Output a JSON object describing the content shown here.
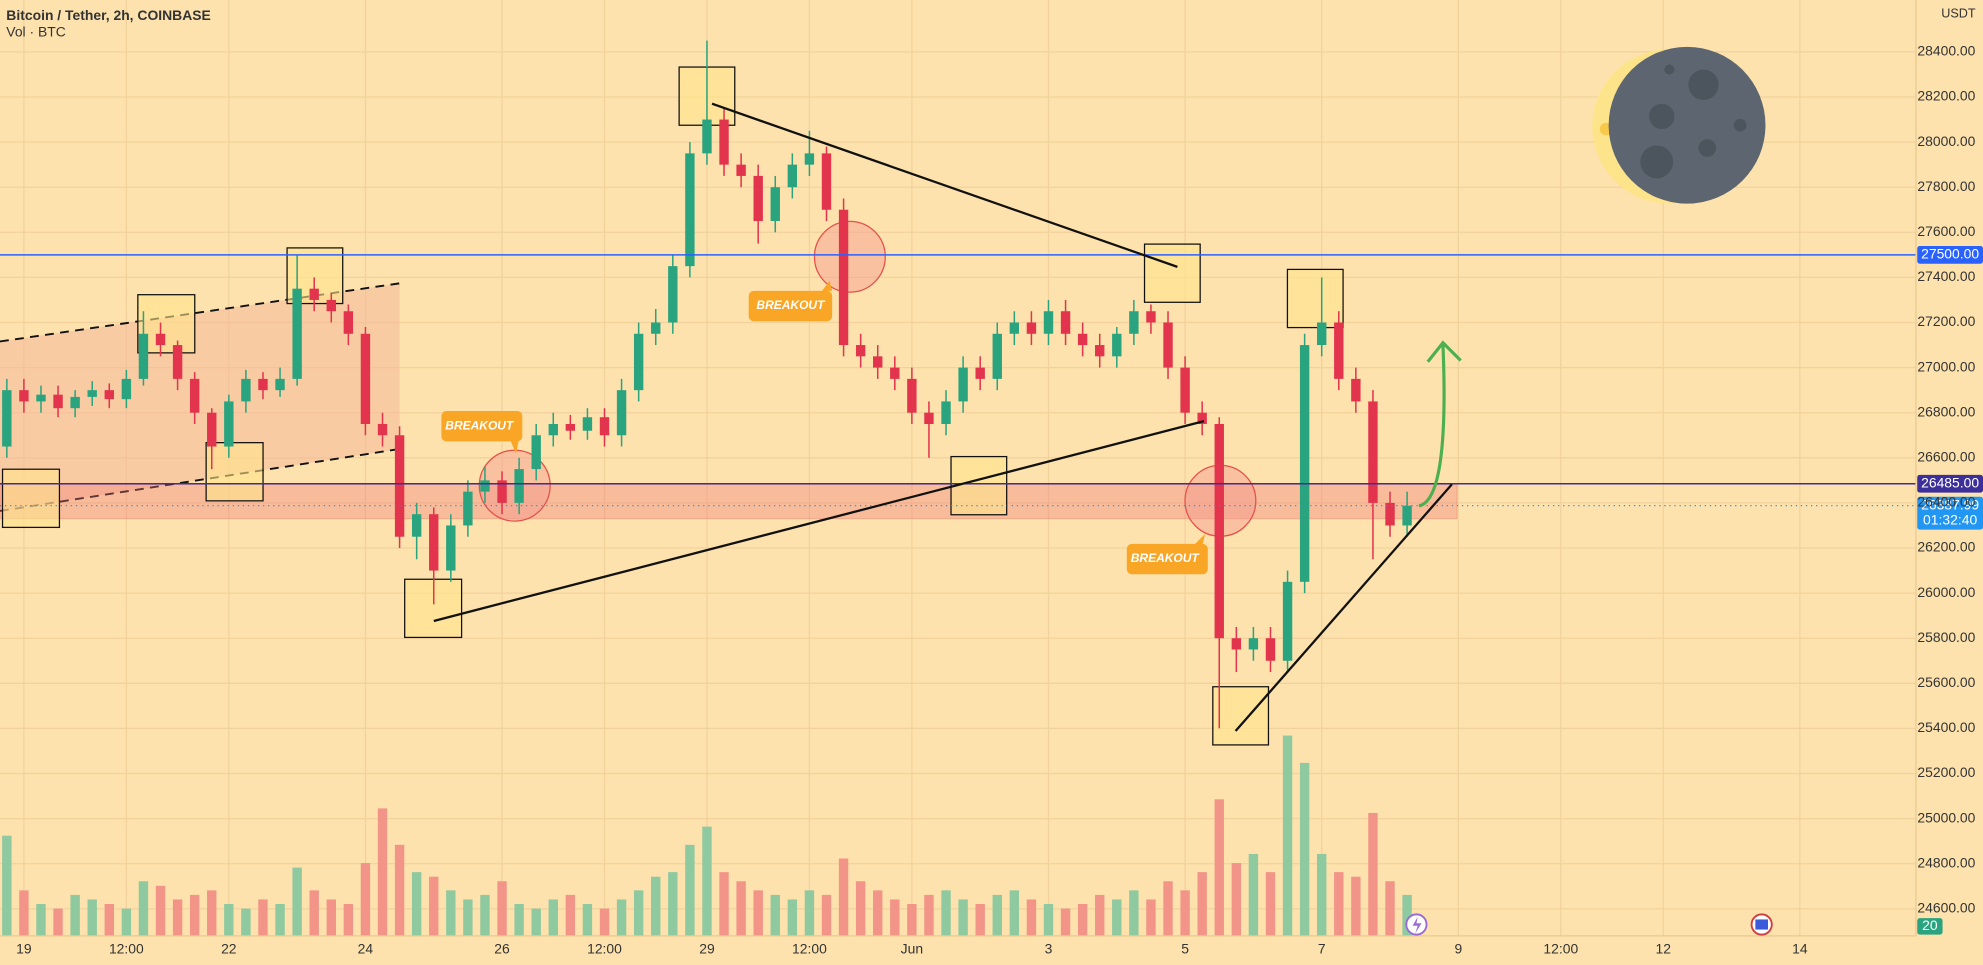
{
  "chart_data": {
    "type": "candlestick",
    "title": "Bitcoin / Tether, 2h, COINBASE",
    "subtitle": "Vol · BTC",
    "y_axis_label": "USDT",
    "open": [
      26650,
      26900,
      26850,
      26880,
      26820,
      26870,
      26900,
      26860,
      26950,
      27150,
      27100,
      26950,
      26800,
      26650,
      26850,
      26950,
      26900,
      26950,
      27350,
      27300,
      27250,
      27150,
      26750,
      26700,
      26250,
      26350,
      26100,
      26300,
      26450,
      26500,
      26400,
      26550,
      26700,
      26750,
      26720,
      26780,
      26700,
      26900,
      27150,
      27200,
      27450,
      27950,
      28100,
      27900,
      27850,
      27650,
      27800,
      27900,
      27950,
      27700,
      27100,
      27050,
      27000,
      26950,
      26800,
      26750,
      26850,
      27000,
      26950,
      27150,
      27200,
      27150,
      27250,
      27150,
      27100,
      27050,
      27150,
      27250,
      27200,
      27000,
      26800,
      26750,
      25800,
      25750,
      25800,
      25700,
      26050,
      27100,
      27200,
      26950,
      26850,
      26400,
      26300
    ],
    "high": [
      26950,
      26950,
      26920,
      26920,
      26900,
      26940,
      26930,
      26990,
      27250,
      27200,
      27120,
      26980,
      26820,
      26880,
      26990,
      26980,
      27000,
      27500,
      27400,
      27330,
      27280,
      27180,
      26800,
      26740,
      26400,
      26380,
      26350,
      26500,
      26560,
      26540,
      26600,
      26750,
      26800,
      26790,
      26820,
      26820,
      26950,
      27200,
      27260,
      27500,
      28000,
      28450,
      28150,
      27950,
      27900,
      27850,
      27950,
      28050,
      27980,
      27750,
      27150,
      27100,
      27050,
      27000,
      26850,
      26900,
      27050,
      27050,
      27200,
      27250,
      27250,
      27300,
      27300,
      27200,
      27150,
      27180,
      27300,
      27280,
      27250,
      27050,
      26850,
      26780,
      25850,
      25850,
      25850,
      26100,
      27150,
      27400,
      27250,
      27000,
      26900,
      26450,
      26450
    ],
    "low": [
      26600,
      26800,
      26800,
      26780,
      26780,
      26830,
      26820,
      26820,
      26920,
      27050,
      26900,
      26750,
      26550,
      26600,
      26800,
      26860,
      26870,
      26920,
      27250,
      27200,
      27100,
      26700,
      26650,
      26200,
      26150,
      25950,
      26050,
      26250,
      26400,
      26350,
      26350,
      26500,
      26650,
      26680,
      26680,
      26650,
      26650,
      26850,
      27100,
      27150,
      27400,
      27900,
      27850,
      27800,
      27550,
      27600,
      27750,
      27850,
      27650,
      27050,
      27000,
      26950,
      26900,
      26750,
      26600,
      26700,
      26800,
      26900,
      26900,
      27100,
      27100,
      27100,
      27100,
      27050,
      27000,
      27000,
      27100,
      27150,
      26950,
      26750,
      26700,
      25400,
      25650,
      25700,
      25650,
      25650,
      26000,
      27050,
      26900,
      26800,
      26150,
      26250,
      26250
    ],
    "close": [
      26900,
      26850,
      26880,
      26820,
      26870,
      26900,
      26860,
      26950,
      27150,
      27100,
      26950,
      26800,
      26650,
      26850,
      26950,
      26900,
      26950,
      27350,
      27300,
      27250,
      27150,
      26750,
      26700,
      26250,
      26350,
      26100,
      26300,
      26450,
      26500,
      26400,
      26550,
      26700,
      26750,
      26720,
      26780,
      26700,
      26900,
      27150,
      27200,
      27450,
      27950,
      28100,
      27900,
      27850,
      27650,
      27800,
      27900,
      27950,
      27700,
      27100,
      27050,
      27000,
      26950,
      26800,
      26750,
      26850,
      27000,
      26950,
      27150,
      27200,
      27150,
      27250,
      27150,
      27100,
      27050,
      27150,
      27250,
      27200,
      27000,
      26800,
      26750,
      25800,
      25750,
      25800,
      25700,
      26050,
      27100,
      27200,
      26950,
      26850,
      26400,
      26300,
      26387.99
    ],
    "volume": [
      1100,
      500,
      350,
      300,
      450,
      400,
      350,
      300,
      600,
      550,
      400,
      450,
      500,
      350,
      300,
      400,
      350,
      750,
      500,
      400,
      350,
      800,
      1400,
      1000,
      700,
      650,
      500,
      400,
      450,
      600,
      350,
      300,
      400,
      450,
      350,
      300,
      400,
      500,
      650,
      700,
      1000,
      1200,
      700,
      600,
      500,
      450,
      400,
      500,
      450,
      850,
      600,
      500,
      400,
      350,
      450,
      500,
      400,
      350,
      450,
      500,
      400,
      350,
      300,
      350,
      450,
      400,
      500,
      400,
      600,
      500,
      700,
      1500,
      800,
      900,
      700,
      2200,
      1900,
      900,
      700,
      650,
      1350,
      600,
      450
    ],
    "up_color": "#2aa47f",
    "down_color": "#e2344c",
    "volume_up_color": "#8ec9a0",
    "volume_down_color": "#f29488",
    "xlim": [
      -0.4,
      111.8
    ],
    "xticks": [
      {
        "value": 1,
        "label": "19"
      },
      {
        "value": 7,
        "label": "12:00"
      },
      {
        "value": 13,
        "label": "22"
      },
      {
        "value": 21,
        "label": "24"
      },
      {
        "value": 29,
        "label": "26"
      },
      {
        "value": 35,
        "label": "12:00"
      },
      {
        "value": 41,
        "label": "29"
      },
      {
        "value": 47,
        "label": "12:00"
      },
      {
        "value": 53,
        "label": "Jun"
      },
      {
        "value": 61,
        "label": "3"
      },
      {
        "value": 69,
        "label": "5"
      },
      {
        "value": 77,
        "label": "7"
      },
      {
        "value": 85,
        "label": "9"
      },
      {
        "value": 91,
        "label": "12:00"
      },
      {
        "value": 97,
        "label": "12"
      },
      {
        "value": 105,
        "label": "14"
      }
    ],
    "ylim": [
      24480,
      28630
    ],
    "yticks": [
      {
        "value": 24600,
        "label": "24600.00"
      },
      {
        "value": 24800,
        "label": "24800.00"
      },
      {
        "value": 25000,
        "label": "25000.00"
      },
      {
        "value": 25200,
        "label": "25200.00"
      },
      {
        "value": 25400,
        "label": "25400.00"
      },
      {
        "value": 25600,
        "label": "25600.00"
      },
      {
        "value": 25800,
        "label": "25800.00"
      },
      {
        "value": 26000,
        "label": "26000.00"
      },
      {
        "value": 26200,
        "label": "26200.00"
      },
      {
        "value": 26400,
        "label": "26400.00"
      },
      {
        "value": 26600,
        "label": "26600.00"
      },
      {
        "value": 26800,
        "label": "26800.00"
      },
      {
        "value": 27000,
        "label": "27000.00"
      },
      {
        "value": 27200,
        "label": "27200.00"
      },
      {
        "value": 27400,
        "label": "27400.00"
      },
      {
        "value": 27600,
        "label": "27600.00"
      },
      {
        "value": 27800,
        "label": "27800.00"
      },
      {
        "value": 28000,
        "label": "28000.00"
      },
      {
        "value": 28200,
        "label": "28200.00"
      },
      {
        "value": 28400,
        "label": "28400.00"
      }
    ],
    "volume_lim": [
      0,
      2500
    ],
    "grid": true,
    "levels": [
      {
        "value": 27500,
        "label": "27500.00",
        "color": "#2962ff"
      },
      {
        "value": 26485,
        "label": "26485.00",
        "color": "#3c2f9a"
      }
    ],
    "last_price": {
      "value": 26387.99,
      "label": "26387.99",
      "countdown": "01:32:40",
      "color": "#2196f3"
    },
    "annotations": [
      "BREAKOUT",
      "BREAKOUT",
      "BREAKOUT"
    ],
    "volume_badge": "20"
  }
}
